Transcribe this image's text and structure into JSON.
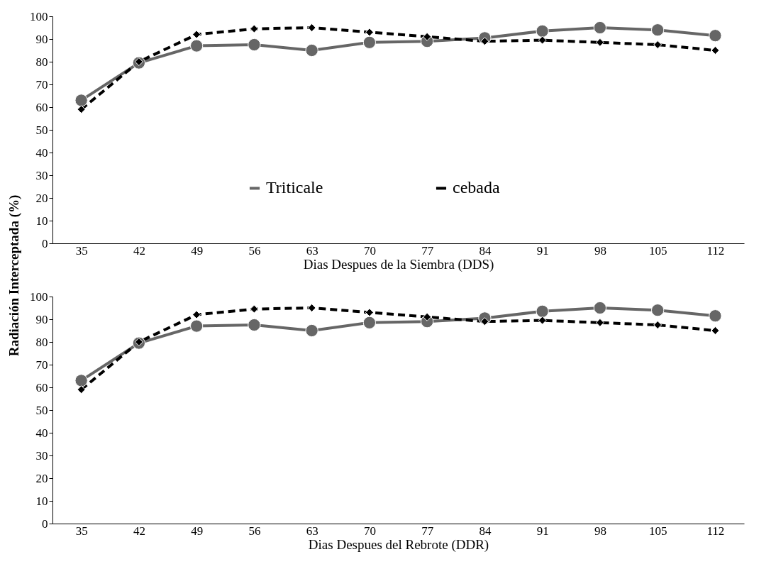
{
  "chart_data": [
    {
      "type": "line",
      "xlabel": "Dias Despues de la Siembra (DDS)",
      "ylabel": "Radiación Interceptada (%)",
      "categories": [
        "35",
        "42",
        "49",
        "56",
        "63",
        "70",
        "77",
        "84",
        "91",
        "98",
        "105",
        "112"
      ],
      "series": [
        {
          "name": "Triticale",
          "color": "#666666",
          "marker": "circle",
          "line_style": "solid",
          "values": [
            63,
            79.5,
            87,
            87.5,
            85,
            88.5,
            89,
            90.5,
            93.5,
            95,
            94,
            91.5
          ]
        },
        {
          "name": "cebada",
          "color": "#000000",
          "marker": "diamond",
          "line_style": "dashed",
          "values": [
            59,
            80,
            92,
            94.5,
            95,
            93,
            91,
            89,
            89.5,
            88.5,
            87.5,
            85
          ]
        }
      ],
      "ylim": [
        0,
        100
      ],
      "yticks": [
        0,
        10,
        20,
        30,
        40,
        50,
        60,
        70,
        80,
        90,
        100
      ],
      "grid": false,
      "legend": "center"
    },
    {
      "type": "line",
      "xlabel": "Dias Despues del Rebrote (DDR)",
      "categories": [
        "35",
        "42",
        "49",
        "56",
        "63",
        "70",
        "77",
        "84",
        "91",
        "98",
        "105",
        "112"
      ],
      "series": [
        {
          "color": "#666666",
          "marker": "circle",
          "line_style": "solid",
          "values": [
            63,
            79.5,
            87,
            87.5,
            85,
            88.5,
            89,
            90.5,
            93.5,
            95,
            94,
            91.5
          ]
        },
        {
          "color": "#000000",
          "marker": "diamond",
          "line_style": "dashed",
          "values": [
            59,
            80,
            92,
            94.5,
            95,
            93,
            91,
            89,
            89.5,
            88.5,
            87.5,
            85
          ]
        }
      ],
      "ylim": [
        0,
        100
      ],
      "yticks": [
        0,
        10,
        20,
        30,
        40,
        50,
        60,
        70,
        80,
        90,
        100
      ],
      "grid": false,
      "legend": false
    }
  ]
}
